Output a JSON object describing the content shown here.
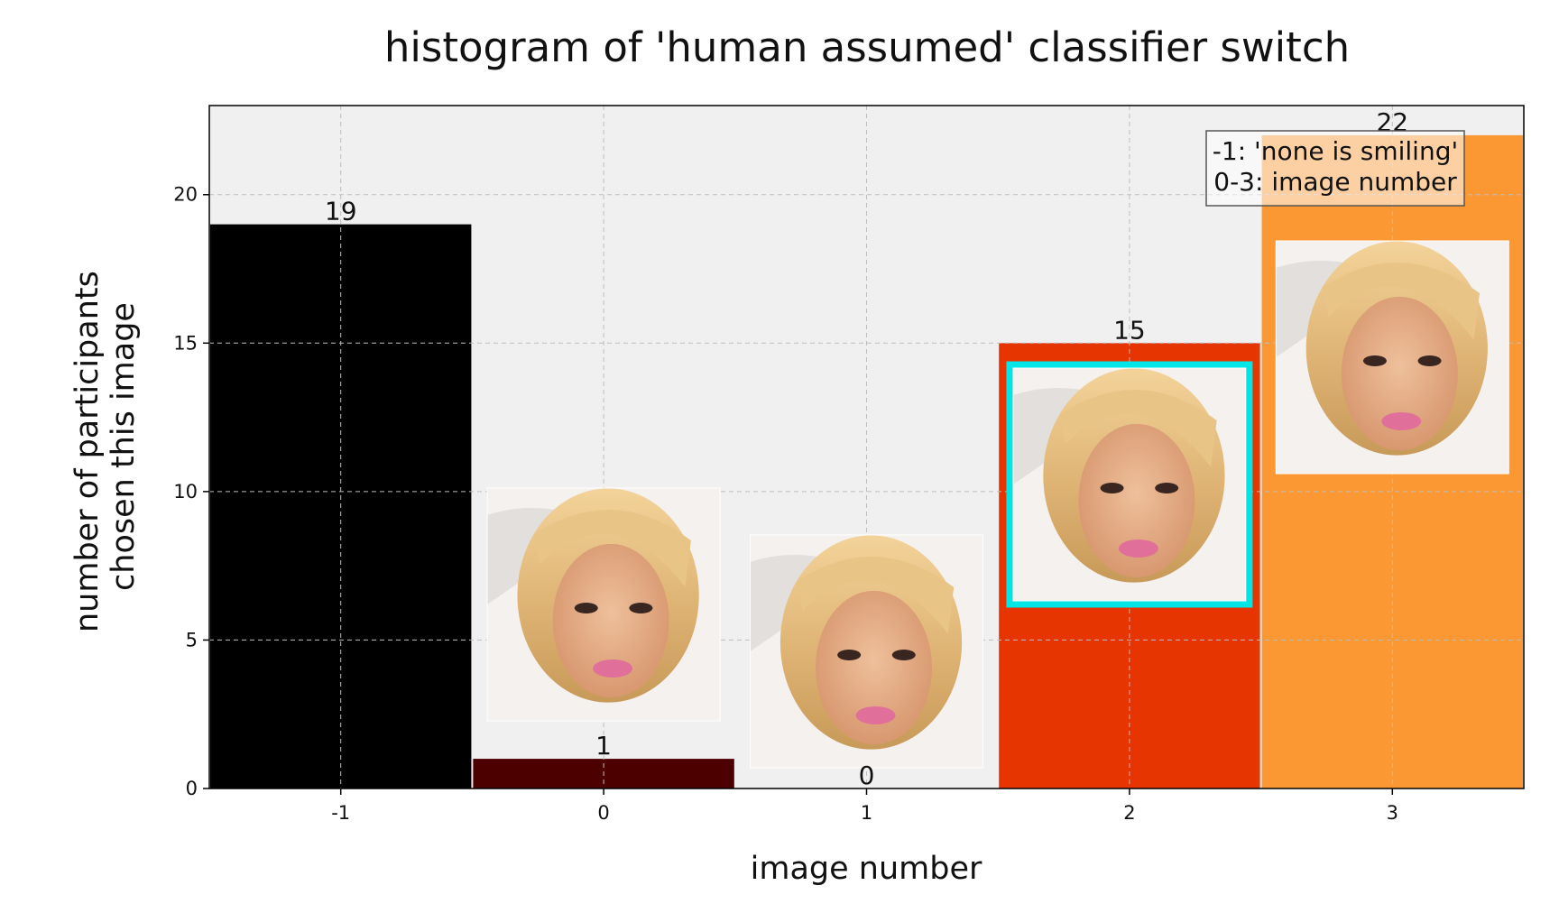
{
  "chart_data": {
    "type": "bar",
    "title": "histogram of 'human assumed' classifier switch",
    "xlabel": "image number",
    "ylabel": [
      "number of participants",
      "chosen this image"
    ],
    "categories": [
      "-1",
      "0",
      "1",
      "2",
      "3"
    ],
    "values": [
      19,
      1,
      0,
      15,
      22
    ],
    "colors": [
      "#000000",
      "#4d0000",
      "#f2f2f2",
      "#e63500",
      "#fb9833"
    ],
    "ylim": [
      0,
      23
    ],
    "yticks": [
      0,
      5,
      10,
      15,
      20
    ],
    "grid": true,
    "legend": {
      "placement": "top-right",
      "lines": [
        "-1: 'none is smiling'",
        "0-3: image number"
      ]
    },
    "highlight": {
      "category": "2",
      "color": "#00e5e5"
    },
    "thumbnails": [
      "0",
      "1",
      "2",
      "3"
    ],
    "colors_meta": {
      "plot_background": "#f0f0f0",
      "grid": "#bdbdbd",
      "axis": "#000000"
    }
  }
}
